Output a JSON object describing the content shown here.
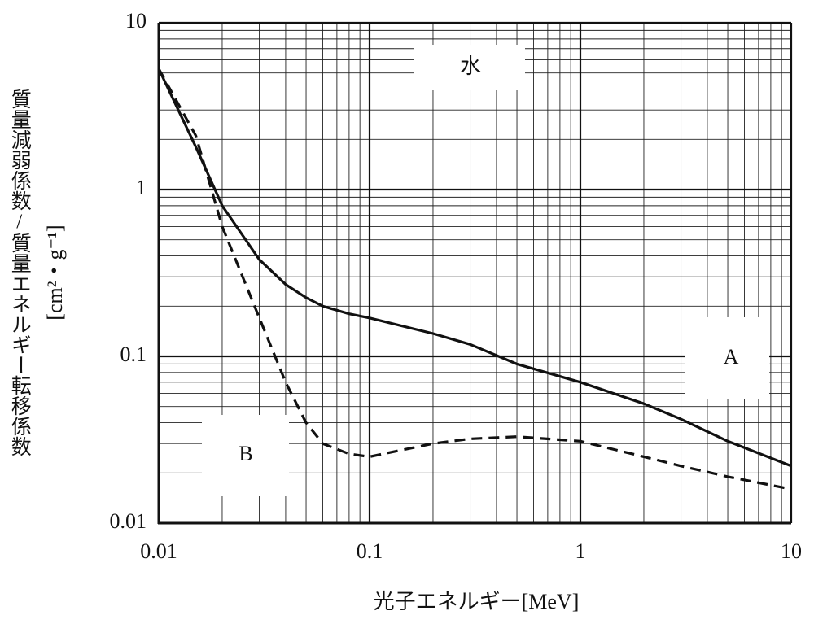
{
  "chart_data": {
    "type": "line",
    "x_label": "光子エネルギー[MeV]",
    "y_label": "質量減弱係数/質量エネルギー転移係数",
    "y_unit": "[cm²・g⁻¹]",
    "annotations": [
      "水",
      "A",
      "B"
    ],
    "x": [
      0.01,
      0.015,
      0.02,
      0.03,
      0.04,
      0.05,
      0.06,
      0.08,
      0.1,
      0.2,
      0.3,
      0.5,
      1,
      2,
      3,
      5,
      10
    ],
    "series": [
      {
        "color": "#111111",
        "dash": false,
        "values": [
          5.3,
          1.8,
          0.8,
          0.38,
          0.27,
          0.225,
          0.2,
          0.18,
          0.17,
          0.137,
          0.118,
          0.09,
          0.07,
          0.052,
          0.042,
          0.031,
          0.022
        ]
      },
      {
        "color": "#111111",
        "dash": true,
        "values": [
          5.3,
          2.1,
          0.6,
          0.17,
          0.07,
          0.04,
          0.03,
          0.026,
          0.025,
          0.03,
          0.032,
          0.033,
          0.031,
          0.025,
          0.022,
          0.019,
          0.016
        ]
      }
    ],
    "log_x": true,
    "log_y": true,
    "xlim": [
      0.01,
      10
    ],
    "ylim": [
      0.01,
      10
    ],
    "xticks": [
      0.01,
      0.1,
      1,
      10
    ],
    "yticks": [
      0.01,
      0.1,
      1,
      10
    ],
    "grid": true
  }
}
